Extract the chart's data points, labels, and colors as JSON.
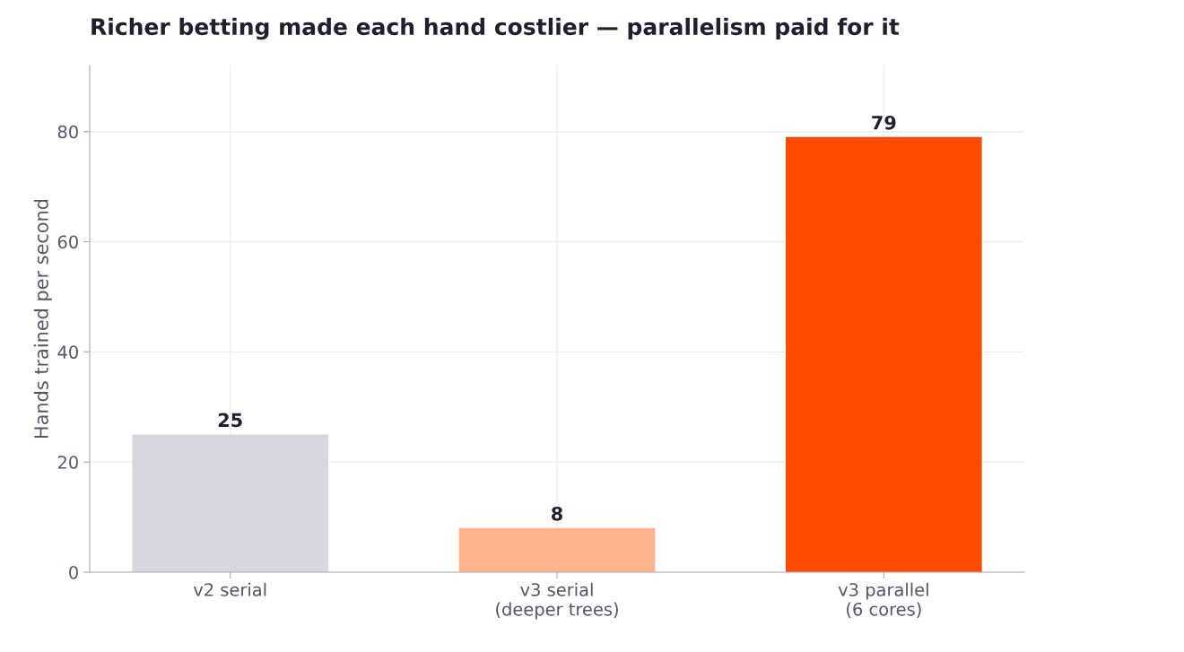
{
  "chart_data": {
    "type": "bar",
    "title": "Richer betting made each hand costlier — parallelism paid for it",
    "ylabel": "Hands trained per second",
    "categories": [
      "v2 serial",
      "v3 serial\n(deeper trees)",
      "v3 parallel\n(6 cores)"
    ],
    "values": [
      25,
      8,
      79
    ],
    "colors": [
      "#d6d6e0",
      "#feb48c",
      "#ff4b00"
    ],
    "ylim": [
      0,
      92
    ],
    "yticks": [
      0,
      20,
      40,
      60,
      80
    ],
    "grid": true,
    "data_labels": true
  }
}
